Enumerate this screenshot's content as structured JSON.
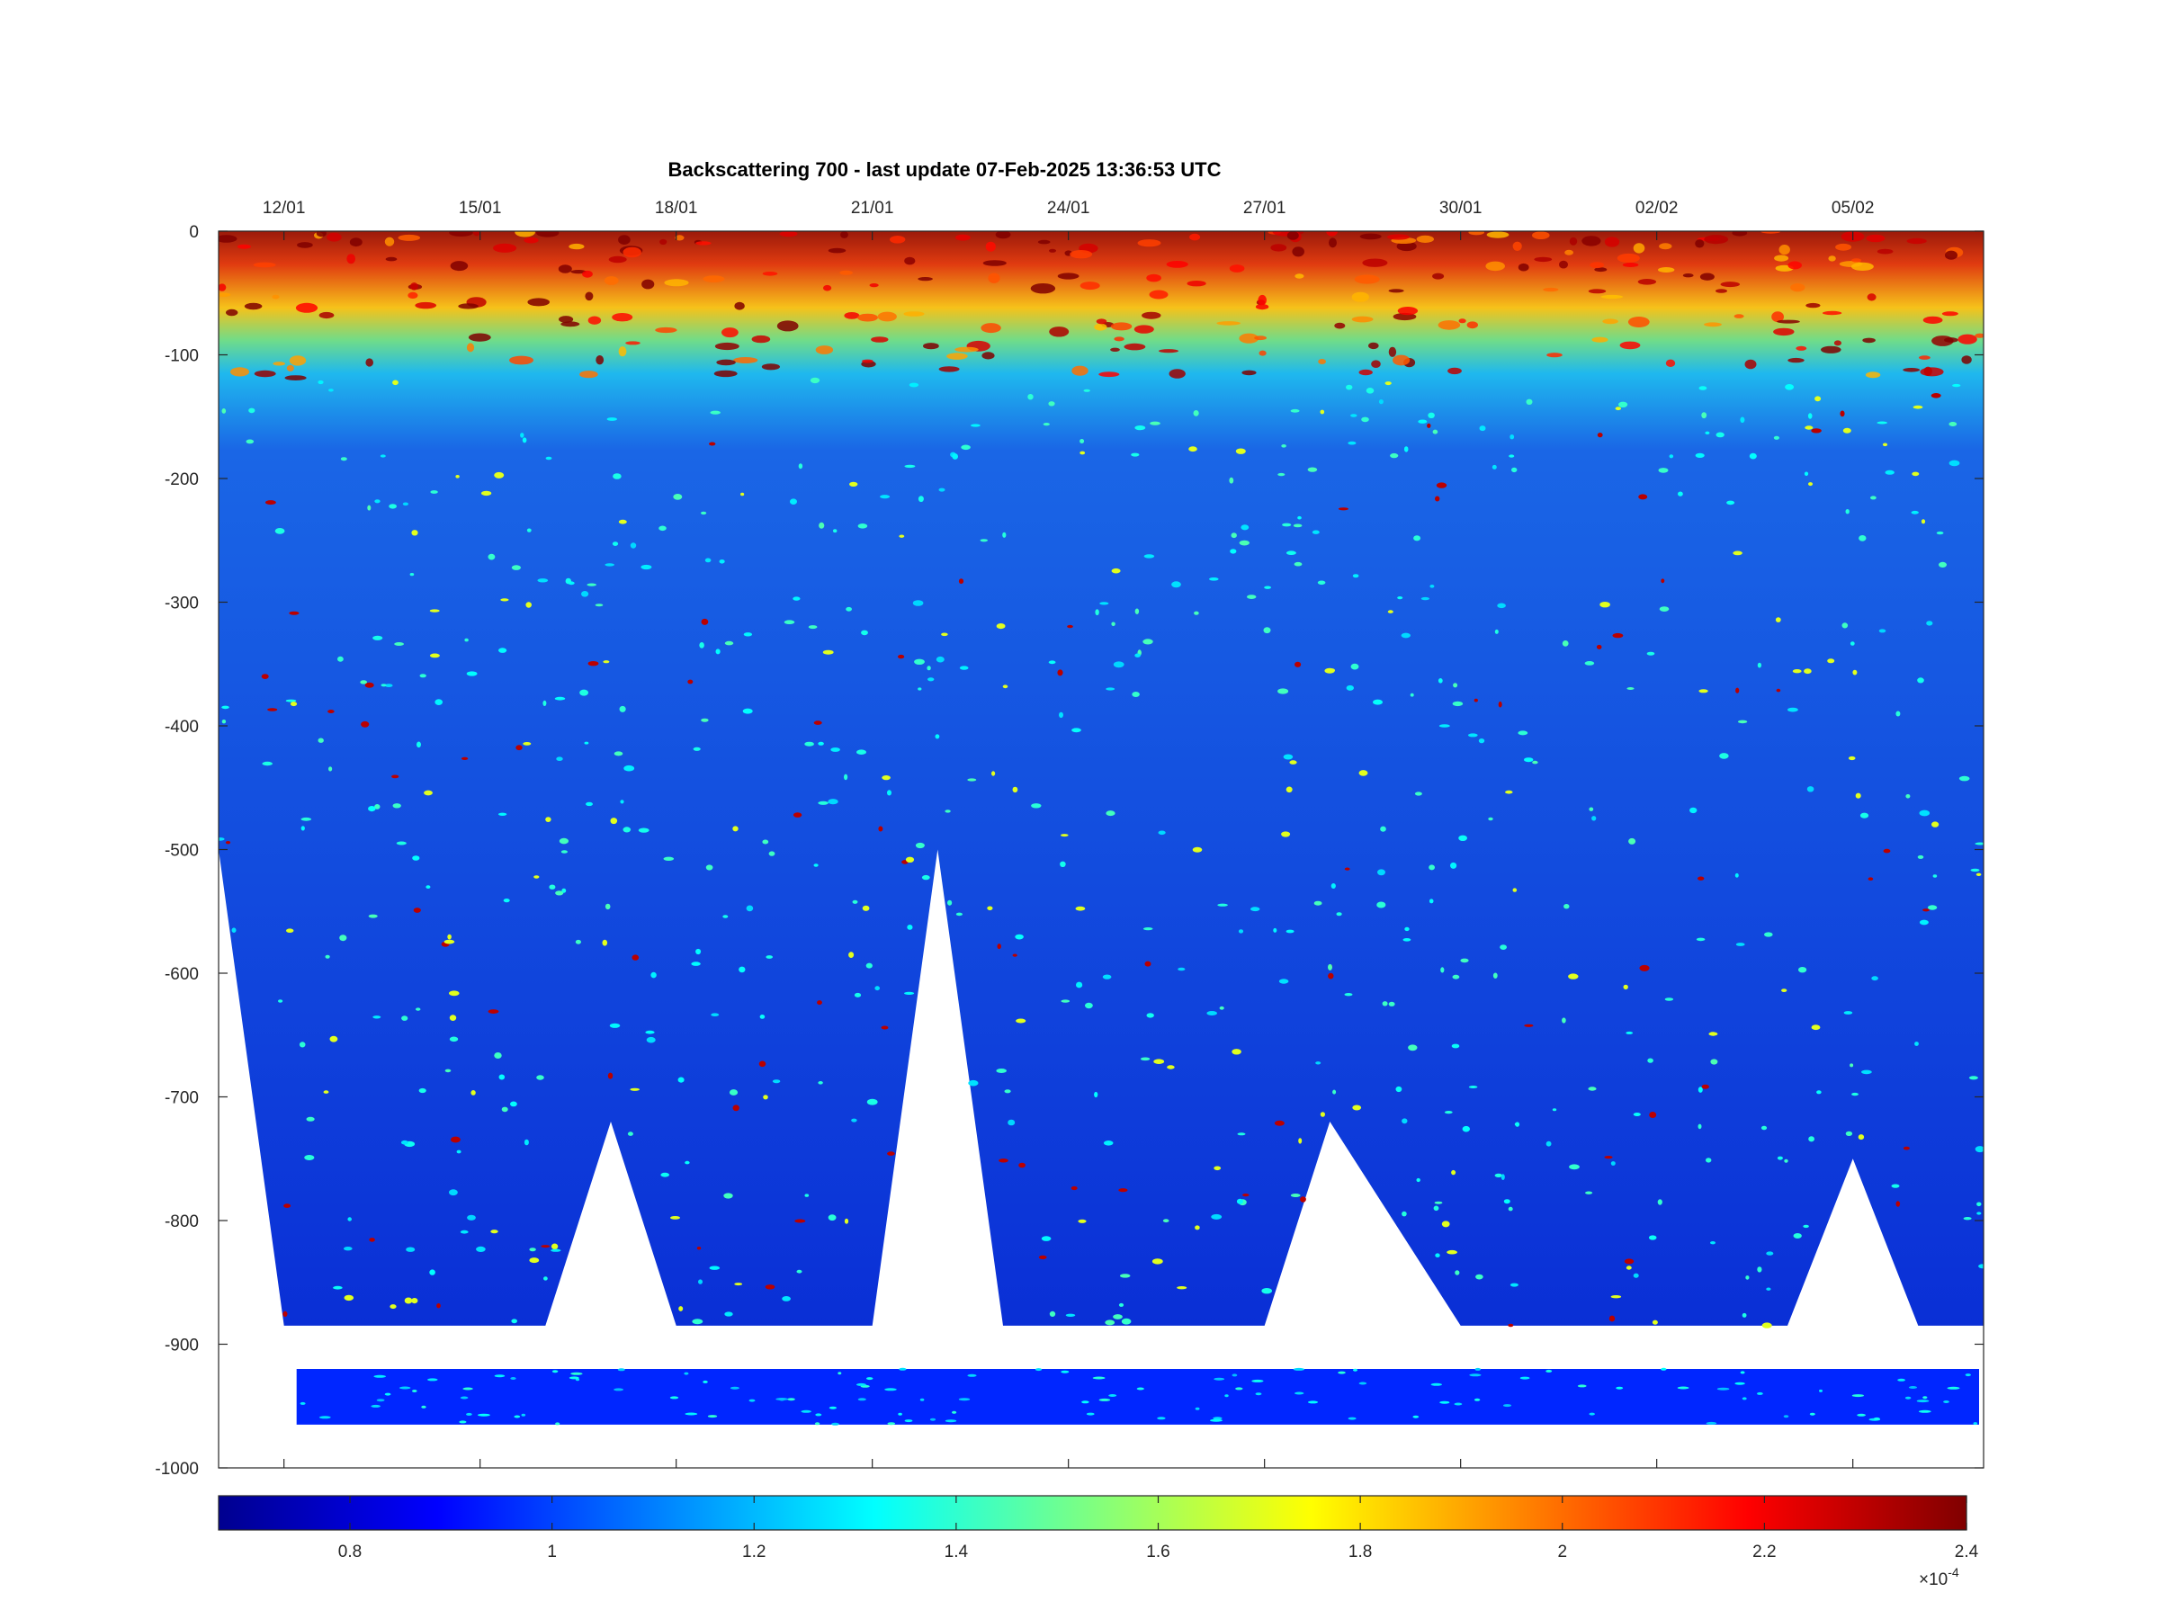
{
  "chart_data": {
    "type": "heatmap",
    "title": "Backscattering 700 - last update 07-Feb-2025 13:36:53 UTC",
    "xlabel": "",
    "ylabel": "",
    "x_axis": {
      "position": "top",
      "tick_labels": [
        "12/01",
        "15/01",
        "18/01",
        "21/01",
        "24/01",
        "27/01",
        "30/01",
        "02/02",
        "05/02"
      ],
      "range": [
        "2025-01-11",
        "2025-02-07"
      ]
    },
    "y_axis": {
      "ylim": [
        -1000,
        0
      ],
      "ticks": [
        0,
        -100,
        -200,
        -300,
        -400,
        -500,
        -600,
        -700,
        -800,
        -900,
        -1000
      ]
    },
    "colorbar": {
      "orientation": "horizontal",
      "colormap": "jet",
      "clim": [
        0.67,
        2.4
      ],
      "ticks": [
        0.8,
        1,
        1.2,
        1.4,
        1.6,
        1.8,
        2,
        2.2,
        2.4
      ],
      "exponent_label": "×10",
      "exponent_power": "-4"
    },
    "profile_max_depth": [
      {
        "date": "2025-01-11",
        "depth": -500
      },
      {
        "date": "2025-01-12",
        "depth": -885
      },
      {
        "date": "2025-01-16",
        "depth": -885
      },
      {
        "date": "2025-01-17",
        "depth": -720
      },
      {
        "date": "2025-01-18",
        "depth": -885
      },
      {
        "date": "2025-01-21",
        "depth": -885
      },
      {
        "date": "2025-01-22",
        "depth": -500
      },
      {
        "date": "2025-01-23",
        "depth": -885
      },
      {
        "date": "2025-01-27",
        "depth": -885
      },
      {
        "date": "2025-01-28",
        "depth": -720
      },
      {
        "date": "2025-01-30",
        "depth": -885
      },
      {
        "date": "2025-02-04",
        "depth": -885
      },
      {
        "date": "2025-02-05",
        "depth": -750
      },
      {
        "date": "2025-02-06",
        "depth": -885
      },
      {
        "date": "2025-02-07",
        "depth": -885
      }
    ],
    "surface_layer": {
      "depth_range": [
        0,
        -120
      ],
      "typical_value": 2.1
    },
    "deep_layer": {
      "typical_value": 0.95
    },
    "bottom_strip": {
      "depth_range": [
        -920,
        -965
      ],
      "typical_value": 0.95
    }
  }
}
